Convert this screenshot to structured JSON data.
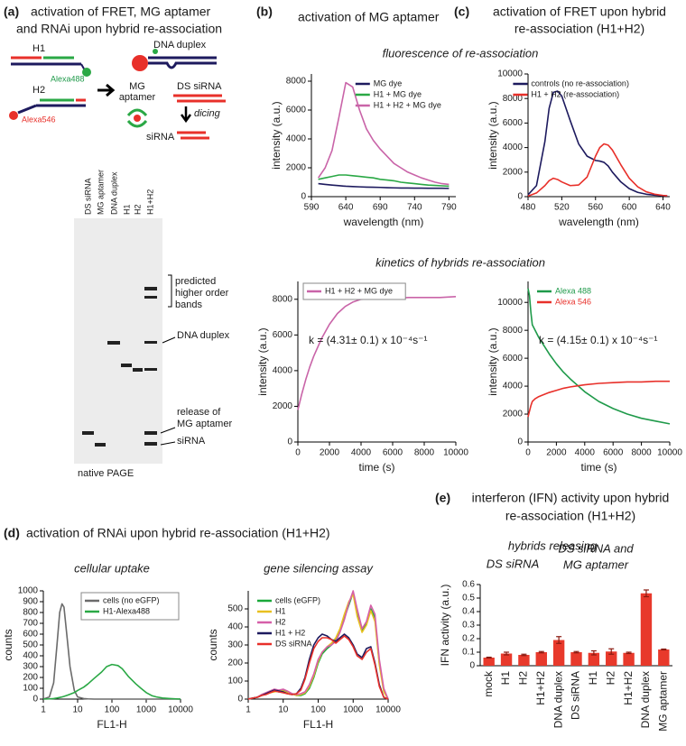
{
  "panels": [
    {
      "label": "(a)",
      "title": [
        "activation of FRET, MG aptamer",
        "and RNAi upon hybrid re-association"
      ]
    },
    {
      "label": "(b)",
      "title": [
        "activation of MG aptamer"
      ]
    },
    {
      "label": "(c)",
      "title": [
        "activation of  FRET upon hybrid",
        "re-association  (H1+H2)"
      ]
    },
    {
      "label": "(d)",
      "title": [
        "activation of  RNAi upon hybrid re-association  (H1+H2)"
      ]
    },
    {
      "label": "(e)",
      "title": [
        "interferon (IFN) activity upon hybrid",
        "re-association  (H1+H2)"
      ]
    }
  ],
  "headings": [
    "fluorescence  of re-association",
    "kinetics of hybrids re-association"
  ],
  "diagram": {
    "labels": [
      "H1",
      "Alexa488",
      "H2",
      "Alexa546",
      "DNA duplex",
      "MG",
      "aptamer",
      "DS siRNA",
      "dicing",
      "siRNA"
    ]
  },
  "gel": {
    "lanes": [
      "DS siRNA",
      "MG aptamer",
      "DNA duplex",
      "H1",
      "H2",
      "H1+H2"
    ],
    "annotations": [
      [
        "predicted",
        "higher order",
        "bands"
      ],
      [
        "DNA duplex"
      ],
      [
        "release of",
        "MG aptamer"
      ],
      [
        "siRNA"
      ]
    ],
    "caption": "native PAGE"
  },
  "chart_data": [
    {
      "type": "line",
      "xlabel": "wavelength (nm)",
      "ylabel": "intensity (a.u.)",
      "x": [
        600,
        610,
        620,
        630,
        640,
        650,
        660,
        670,
        680,
        690,
        700,
        710,
        720,
        730,
        740,
        750,
        760,
        770,
        780,
        790
      ],
      "series": [
        {
          "name": "MG dye",
          "color": "#1d1a5e",
          "values": [
            900,
            850,
            800,
            760,
            720,
            700,
            680,
            660,
            650,
            640,
            620,
            610,
            600,
            600,
            590,
            590,
            580,
            580,
            580,
            570
          ]
        },
        {
          "name": "H1 + MG dye",
          "color": "#2aa845",
          "values": [
            1200,
            1300,
            1400,
            1500,
            1500,
            1450,
            1400,
            1350,
            1300,
            1200,
            1150,
            1100,
            1000,
            950,
            900,
            850,
            800,
            780,
            750,
            720
          ]
        },
        {
          "name": "H1 + H2 + MG dye",
          "color": "#c964a8",
          "values": [
            1300,
            2000,
            3200,
            5500,
            7900,
            7600,
            6000,
            4700,
            3900,
            3300,
            2800,
            2300,
            2000,
            1700,
            1500,
            1300,
            1150,
            1000,
            900,
            850
          ]
        }
      ],
      "xlim": [
        590,
        800
      ],
      "xticks": [
        590,
        640,
        690,
        740,
        790
      ],
      "ylim": [
        0,
        8500
      ],
      "yticks": [
        0,
        2000,
        4000,
        6000,
        8000
      ],
      "legend": "upper right",
      "legend_frame": false
    },
    {
      "type": "line",
      "xlabel": "wavelength (nm)",
      "ylabel": "intensity (a.u.)",
      "x": [
        480,
        490,
        500,
        505,
        510,
        515,
        520,
        530,
        540,
        550,
        560,
        565,
        570,
        575,
        580,
        590,
        600,
        610,
        620,
        630,
        640,
        645
      ],
      "series": [
        {
          "name": "controls (no re-association)",
          "color": "#1d1a5e",
          "values": [
            150,
            900,
            4500,
            7200,
            8500,
            8600,
            8200,
            6200,
            4300,
            3300,
            2950,
            2900,
            2800,
            2500,
            2000,
            1200,
            650,
            350,
            200,
            120,
            80,
            60
          ]
        },
        {
          "name": "H1 + H2 (re-association)",
          "color": "#e8302a",
          "values": [
            50,
            300,
            900,
            1300,
            1500,
            1400,
            1200,
            900,
            950,
            1600,
            3300,
            4000,
            4300,
            4200,
            3800,
            2600,
            1500,
            800,
            400,
            200,
            100,
            70
          ]
        }
      ],
      "xlim": [
        480,
        648
      ],
      "xticks": [
        480,
        520,
        560,
        600,
        640
      ],
      "ylim": [
        0,
        10000
      ],
      "yticks": [
        0,
        2000,
        4000,
        6000,
        8000,
        10000
      ],
      "legend": "upper right",
      "legend_frame": false
    },
    {
      "type": "line",
      "xlabel": "time (s)",
      "ylabel": "intensity (a.u.)",
      "annotation": "k = (4.31± 0.1) x 10⁻⁴s⁻¹",
      "x": [
        0,
        250,
        500,
        750,
        1000,
        1500,
        2000,
        2500,
        3000,
        3500,
        4000,
        5000,
        6000,
        7000,
        8000,
        9000,
        10000
      ],
      "series": [
        {
          "name": "H1 + H2 + MG dye",
          "color": "#c964a8",
          "values": [
            1800,
            2700,
            3500,
            4200,
            4800,
            5800,
            6600,
            7200,
            7600,
            7850,
            8000,
            8050,
            8050,
            8100,
            8100,
            8100,
            8150
          ]
        }
      ],
      "xlim": [
        0,
        10000
      ],
      "xticks": [
        0,
        2000,
        4000,
        6000,
        8000,
        10000
      ],
      "ylim": [
        0,
        9000
      ],
      "yticks": [
        0,
        2000,
        4000,
        6000,
        8000
      ],
      "legend": "upper left",
      "legend_frame": true
    },
    {
      "type": "line",
      "xlabel": "time (s)",
      "ylabel": "intensity (a.u.)",
      "annotation": "k = (4.15± 0.1) x 10⁻⁴s⁻¹",
      "x": [
        0,
        100,
        200,
        300,
        500,
        750,
        1000,
        1500,
        2000,
        2500,
        3000,
        4000,
        5000,
        6000,
        7000,
        8000,
        9000,
        10000
      ],
      "series": [
        {
          "name": "Alexa 488",
          "color": "#1f9a4a",
          "values": [
            11000,
            10500,
            9300,
            8400,
            8000,
            7500,
            7100,
            6300,
            5600,
            5000,
            4500,
            3600,
            2900,
            2400,
            2000,
            1700,
            1500,
            1300
          ]
        },
        {
          "name": "Alexa 546",
          "color": "#e8302a",
          "values": [
            1800,
            2200,
            2600,
            2900,
            3100,
            3250,
            3350,
            3550,
            3700,
            3850,
            3950,
            4100,
            4200,
            4250,
            4300,
            4300,
            4350,
            4350
          ]
        }
      ],
      "xlim": [
        0,
        10000
      ],
      "xticks": [
        0,
        2000,
        4000,
        6000,
        8000,
        10000
      ],
      "ylim": [
        0,
        11500
      ],
      "yticks": [
        0,
        2000,
        4000,
        6000,
        8000,
        10000
      ],
      "legend": "upper left",
      "legend_frame": false,
      "legend_colored_text": true
    },
    {
      "type": "line",
      "title": "cellular uptake",
      "xlabel": "FL1-H",
      "ylabel": "counts",
      "xlog": true,
      "x": [
        1,
        1.5,
        2,
        2.5,
        3,
        3.5,
        4,
        5,
        6,
        8,
        10,
        15,
        20,
        30,
        50,
        70,
        100,
        150,
        200,
        300,
        500,
        700,
        1000,
        1500,
        2000,
        3000,
        5000,
        10000
      ],
      "series": [
        {
          "name": "cells (no eGFP)",
          "color": "#6b6b6b",
          "values": [
            0,
            20,
            150,
            500,
            800,
            880,
            850,
            550,
            300,
            80,
            20,
            5,
            2,
            0,
            0,
            0,
            0,
            0,
            0,
            0,
            0,
            0,
            0,
            0,
            0,
            0,
            0,
            0
          ]
        },
        {
          "name": "H1-Alexa488",
          "color": "#2aa845",
          "values": [
            0,
            2,
            5,
            10,
            15,
            20,
            25,
            35,
            45,
            60,
            80,
            110,
            140,
            190,
            250,
            300,
            320,
            310,
            280,
            210,
            140,
            100,
            60,
            30,
            20,
            10,
            5,
            0
          ]
        }
      ],
      "xlim": [
        1,
        10000
      ],
      "xticks": [
        1,
        10,
        100,
        1000,
        10000
      ],
      "ylim": [
        0,
        1000
      ],
      "yticks": [
        0,
        100,
        200,
        300,
        400,
        500,
        600,
        700,
        800,
        900,
        1000
      ],
      "legend": "upper right",
      "legend_frame": true
    },
    {
      "type": "line",
      "title": "gene silencing assay",
      "xlabel": "FL1-H",
      "ylabel": "counts",
      "xlog": true,
      "x": [
        1,
        1.3,
        1.8,
        2.4,
        3.2,
        4.2,
        5.6,
        7.5,
        10,
        13,
        18,
        24,
        32,
        42,
        56,
        75,
        100,
        130,
        180,
        240,
        320,
        420,
        560,
        750,
        1000,
        1300,
        1800,
        2400,
        3200,
        4200,
        5600,
        7500,
        10000
      ],
      "series": [
        {
          "name": "cells (eGFP)",
          "color": "#1aa83a",
          "values": [
            0,
            5,
            10,
            20,
            30,
            40,
            45,
            40,
            50,
            40,
            30,
            20,
            20,
            30,
            60,
            120,
            200,
            250,
            280,
            300,
            330,
            380,
            450,
            520,
            590,
            480,
            380,
            420,
            500,
            450,
            200,
            50,
            0
          ]
        },
        {
          "name": "H1",
          "color": "#e8c020",
          "values": [
            0,
            5,
            10,
            20,
            30,
            35,
            40,
            45,
            45,
            35,
            30,
            20,
            25,
            35,
            70,
            130,
            210,
            260,
            290,
            310,
            340,
            390,
            470,
            540,
            580,
            460,
            370,
            410,
            490,
            430,
            190,
            40,
            0
          ]
        },
        {
          "name": "H2",
          "color": "#d65fa8",
          "values": [
            0,
            5,
            10,
            25,
            35,
            45,
            55,
            50,
            55,
            45,
            30,
            25,
            30,
            40,
            80,
            140,
            220,
            260,
            290,
            300,
            320,
            370,
            440,
            530,
            600,
            500,
            390,
            430,
            520,
            470,
            220,
            60,
            0
          ]
        },
        {
          "name": "H1 + H2",
          "color": "#1d1a5e",
          "values": [
            0,
            5,
            10,
            20,
            30,
            40,
            50,
            45,
            40,
            30,
            25,
            30,
            60,
            120,
            220,
            300,
            340,
            360,
            350,
            330,
            320,
            340,
            360,
            340,
            300,
            250,
            230,
            280,
            290,
            200,
            80,
            10,
            0
          ]
        },
        {
          "name": "DS siRNA",
          "color": "#e8302a",
          "values": [
            0,
            5,
            10,
            20,
            25,
            35,
            45,
            40,
            35,
            30,
            25,
            30,
            50,
            110,
            200,
            280,
            320,
            340,
            340,
            330,
            310,
            330,
            350,
            330,
            290,
            240,
            220,
            260,
            280,
            190,
            70,
            10,
            0
          ]
        }
      ],
      "xlim": [
        1,
        10000
      ],
      "xticks": [
        1,
        10,
        100,
        1000,
        10000
      ],
      "ylim": [
        0,
        600
      ],
      "yticks": [
        0,
        100,
        200,
        300,
        400,
        500
      ],
      "legend": "upper left",
      "legend_frame": false
    },
    {
      "type": "bar",
      "ylabel": "IFN activity (a.u.)",
      "color": "#e8392b",
      "annotations": [
        "hybrids releasing",
        "DS siRNA",
        "DS siRNA and",
        "MG aptamer"
      ],
      "categories": [
        "mock",
        "H1",
        "H2",
        "H1+H2",
        "DNA duplex",
        "DS siRNA",
        "H1",
        "H2",
        "H1+H2",
        "DNA duplex",
        "MG aptamer"
      ],
      "values": [
        0.06,
        0.09,
        0.08,
        0.1,
        0.19,
        0.1,
        0.095,
        0.105,
        0.095,
        0.535,
        0.12
      ],
      "errors": [
        0.003,
        0.01,
        0.005,
        0.005,
        0.025,
        0.005,
        0.015,
        0.02,
        0.005,
        0.025,
        0.003
      ],
      "ylim": [
        0,
        0.6
      ],
      "yticks": [
        0,
        0.1,
        0.2,
        0.3,
        0.4,
        0.5,
        0.6
      ]
    }
  ]
}
